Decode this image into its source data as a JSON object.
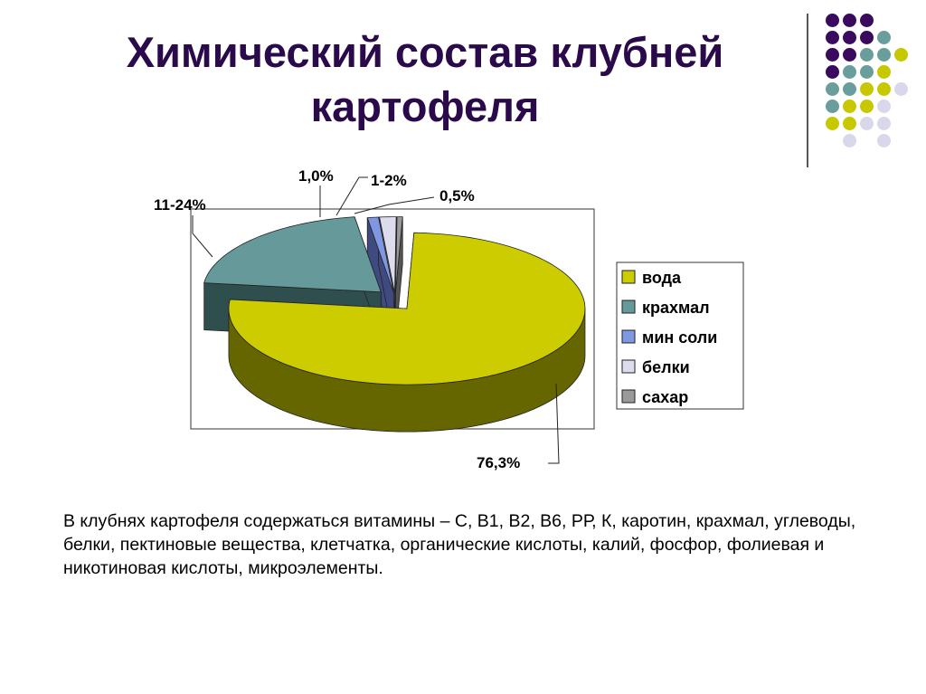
{
  "slide": {
    "title_line1": "Химический состав клубней",
    "title_line2": "картофеля",
    "body_text": "В клубнях картофеля содержаться витамины – С, В1, В2, В6, РР, К, каротин, крахмал, углеводы, белки, пектиновые вещества,  клетчатка, органические кислоты, калий, фосфор, фолиевая и никотиновая кислоты, микроэлементы."
  },
  "decor": {
    "dot_colors": {
      "P": "#3a0a5e",
      "T": "#6a9e9c",
      "Y": "#c8c800",
      "L": "#d8d8ea"
    },
    "dot_rows": [
      "PPP..",
      "PPPT.",
      "PPTTY",
      "PTTY.",
      "TTYYL",
      "TYYL.",
      "YYLL.",
      ".L.L."
    ]
  },
  "chart_data": {
    "type": "pie",
    "style": "3d-exploded",
    "categories": [
      "вода",
      "крахмал",
      "мин соли",
      "белки",
      "сахар"
    ],
    "values": [
      76.3,
      20.7,
      1.0,
      1.5,
      0.5
    ],
    "data_labels": [
      "76,3%",
      "11-24%",
      "1,0%",
      "1-2%",
      "0,5%"
    ],
    "colors": [
      "#cccc00",
      "#669999",
      "#7f96e0",
      "#dcdcec",
      "#999999"
    ],
    "side_colors": [
      "#666600",
      "#2f4f4f",
      "#3f4b80",
      "#8a8aa0",
      "#555555"
    ],
    "legend_position": "right"
  }
}
